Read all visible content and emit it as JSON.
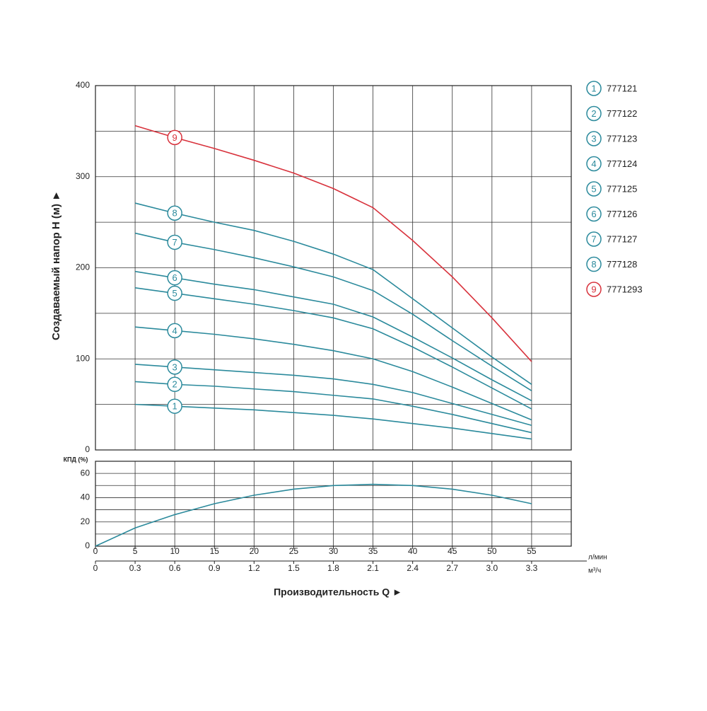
{
  "chart_data": [
    {
      "type": "line",
      "ylabel": "Создаваемый напор H (м) ►",
      "ylim": [
        0,
        400
      ],
      "yticks": [
        0,
        100,
        200,
        300,
        400
      ],
      "minor_yticks": [
        50,
        150,
        250,
        350
      ],
      "grid": true,
      "x": [
        5,
        10,
        15,
        20,
        25,
        30,
        35,
        40,
        45,
        50,
        55
      ],
      "series": [
        {
          "name": "777121",
          "label": "1",
          "color": "#2b8a9c",
          "values": [
            50,
            48,
            46,
            44,
            41,
            38,
            34,
            29,
            24,
            18,
            12
          ]
        },
        {
          "name": "777122",
          "label": "2",
          "color": "#2b8a9c",
          "values": [
            75,
            72,
            70,
            67,
            64,
            60,
            56,
            48,
            39,
            29,
            19
          ]
        },
        {
          "name": "777123",
          "label": "3",
          "color": "#2b8a9c",
          "values": [
            94,
            91,
            88,
            85,
            82,
            78,
            72,
            63,
            51,
            39,
            27
          ]
        },
        {
          "name": "777124",
          "label": "4",
          "color": "#2b8a9c",
          "values": [
            135,
            131,
            127,
            122,
            116,
            109,
            100,
            86,
            69,
            51,
            33
          ]
        },
        {
          "name": "777125",
          "label": "5",
          "color": "#2b8a9c",
          "values": [
            178,
            172,
            166,
            160,
            153,
            145,
            133,
            113,
            91,
            68,
            45
          ]
        },
        {
          "name": "777126",
          "label": "6",
          "color": "#2b8a9c",
          "values": [
            196,
            189,
            182,
            176,
            168,
            160,
            146,
            124,
            101,
            77,
            54
          ]
        },
        {
          "name": "777127",
          "label": "7",
          "color": "#2b8a9c",
          "values": [
            238,
            228,
            220,
            211,
            201,
            190,
            175,
            149,
            120,
            92,
            65
          ]
        },
        {
          "name": "777128",
          "label": "8",
          "color": "#2b8a9c",
          "values": [
            271,
            260,
            250,
            241,
            229,
            215,
            198,
            166,
            134,
            102,
            72
          ]
        },
        {
          "name": "7771293",
          "label": "9",
          "color": "#d8323c",
          "values": [
            356,
            343,
            331,
            318,
            304,
            287,
            266,
            230,
            190,
            145,
            97
          ]
        }
      ]
    },
    {
      "type": "line",
      "ylabel": "КПД (%)",
      "ylim": [
        0,
        70
      ],
      "yticks": [
        0,
        20,
        40,
        60
      ],
      "minor_yticks": [
        10,
        30,
        50,
        70
      ],
      "grid": true,
      "xlim": [
        0,
        60
      ],
      "xticks": [
        0,
        5,
        10,
        15,
        20,
        25,
        30,
        35,
        40,
        45,
        50,
        55
      ],
      "x_unit": "л/мин",
      "x2lim": [
        0,
        3.6
      ],
      "x2ticks": [
        0,
        0.3,
        0.6,
        0.9,
        1.2,
        1.5,
        1.8,
        2.1,
        2.4,
        2.7,
        {
          "value": 3.0,
          "label": "3.0"
        },
        3.3
      ],
      "x2_unit": "м³/ч",
      "xlabel": "Производительность Q ►",
      "x": [
        0,
        5,
        10,
        15,
        20,
        25,
        30,
        35,
        40,
        45,
        50,
        55
      ],
      "series": [
        {
          "color": "#2b8a9c",
          "values": [
            0,
            15,
            26,
            35,
            42,
            47,
            50,
            51,
            50,
            47,
            42,
            35
          ]
        }
      ]
    }
  ]
}
